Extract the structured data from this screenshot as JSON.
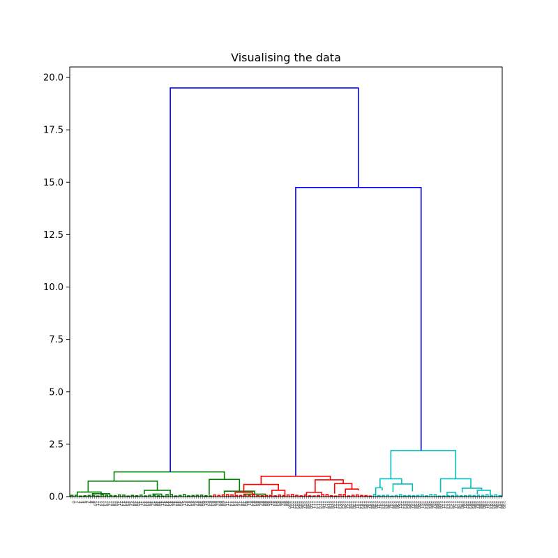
{
  "chart_data": {
    "type": "dendrogram",
    "title": "Visualising the data",
    "xlabel": "",
    "ylabel": "",
    "ylim": [
      0,
      20.5
    ],
    "y_ticks": [
      0.0,
      2.5,
      5.0,
      7.5,
      10.0,
      12.5,
      15.0,
      17.5,
      20.0
    ],
    "y_tick_labels": [
      "0.0",
      "2.5",
      "5.0",
      "7.5",
      "10.0",
      "12.5",
      "15.0",
      "17.5",
      "20.0"
    ],
    "grid": false,
    "leaf_count": 200,
    "colors": {
      "link_above_threshold": "#0000ff",
      "cluster_green": "#008000",
      "cluster_red": "#ff0000",
      "cluster_cyan": "#00bfbf"
    },
    "top_links": [
      {
        "x_from": 46,
        "x_to": 133,
        "height": 19.5,
        "color": "link_above_threshold",
        "left_height": 1.18,
        "right_height": 14.75
      },
      {
        "x_from": 104,
        "x_to": 162,
        "height": 14.75,
        "color": "link_above_threshold",
        "left_height": 0.97,
        "right_height": 2.2
      }
    ],
    "clusters": [
      {
        "color": "cluster_green",
        "links": [
          {
            "x1": 20,
            "x2": 71,
            "h": 1.18,
            "hl": 0.74,
            "hr": 0.82
          },
          {
            "x1": 8,
            "x2": 40,
            "h": 0.74,
            "hl": 0.22,
            "hr": 0.3
          },
          {
            "x1": 64,
            "x2": 78,
            "h": 0.82,
            "hl": 0.08,
            "hr": 0.26
          },
          {
            "x1": 3,
            "x2": 14,
            "h": 0.22,
            "hl": 0.05,
            "hr": 0.14
          },
          {
            "x1": 34,
            "x2": 46,
            "h": 0.3,
            "hl": 0.12,
            "hr": 0.08
          },
          {
            "x1": 71,
            "x2": 85,
            "h": 0.26,
            "hl": 0.1,
            "hr": 0.12
          },
          {
            "x1": 10,
            "x2": 18,
            "h": 0.14,
            "hl": 0.0,
            "hr": 0.0
          },
          {
            "x1": 38,
            "x2": 42,
            "h": 0.12,
            "hl": 0.0,
            "hr": 0.0
          },
          {
            "x1": 80,
            "x2": 90,
            "h": 0.12,
            "hl": 0.0,
            "hr": 0.0
          }
        ],
        "range": [
          0,
          66
        ]
      },
      {
        "color": "cluster_red",
        "links": [
          {
            "x1": 88,
            "x2": 120,
            "h": 0.97,
            "hl": 0.58,
            "hr": 0.8
          },
          {
            "x1": 80,
            "x2": 96,
            "h": 0.58,
            "hl": 0.2,
            "hr": 0.3
          },
          {
            "x1": 113,
            "x2": 126,
            "h": 0.8,
            "hl": 0.2,
            "hr": 0.62
          },
          {
            "x1": 122,
            "x2": 130,
            "h": 0.62,
            "hl": 0.14,
            "hr": 0.36
          },
          {
            "x1": 76,
            "x2": 84,
            "h": 0.2,
            "hl": 0.1,
            "hr": 0.0
          },
          {
            "x1": 93,
            "x2": 99,
            "h": 0.3,
            "hl": 0.1,
            "hr": 0.0
          },
          {
            "x1": 109,
            "x2": 116,
            "h": 0.2,
            "hl": 0.0,
            "hr": 0.12
          },
          {
            "x1": 127,
            "x2": 133,
            "h": 0.36,
            "hl": 0.14,
            "hr": 0.3
          }
        ],
        "range": [
          66,
          140
        ]
      },
      {
        "color": "cluster_cyan",
        "links": [
          {
            "x1": 148,
            "x2": 178,
            "h": 2.2,
            "hl": 0.85,
            "hr": 0.85
          },
          {
            "x1": 143,
            "x2": 153,
            "h": 0.85,
            "hl": 0.42,
            "hr": 0.6
          },
          {
            "x1": 171,
            "x2": 185,
            "h": 0.85,
            "hl": 0.2,
            "hr": 0.4
          },
          {
            "x1": 141,
            "x2": 144,
            "h": 0.42,
            "hl": 0.1,
            "hr": 0.3
          },
          {
            "x1": 149,
            "x2": 158,
            "h": 0.6,
            "hl": 0.22,
            "hr": 0.25
          },
          {
            "x1": 181,
            "x2": 190,
            "h": 0.4,
            "hl": 0.2,
            "hr": 0.3
          },
          {
            "x1": 174,
            "x2": 178,
            "h": 0.2,
            "hl": 0.0,
            "hr": 0.0
          },
          {
            "x1": 188,
            "x2": 194,
            "h": 0.3,
            "hl": 0.12,
            "hr": 0.0
          }
        ],
        "range": [
          140,
          200
        ]
      }
    ]
  }
}
